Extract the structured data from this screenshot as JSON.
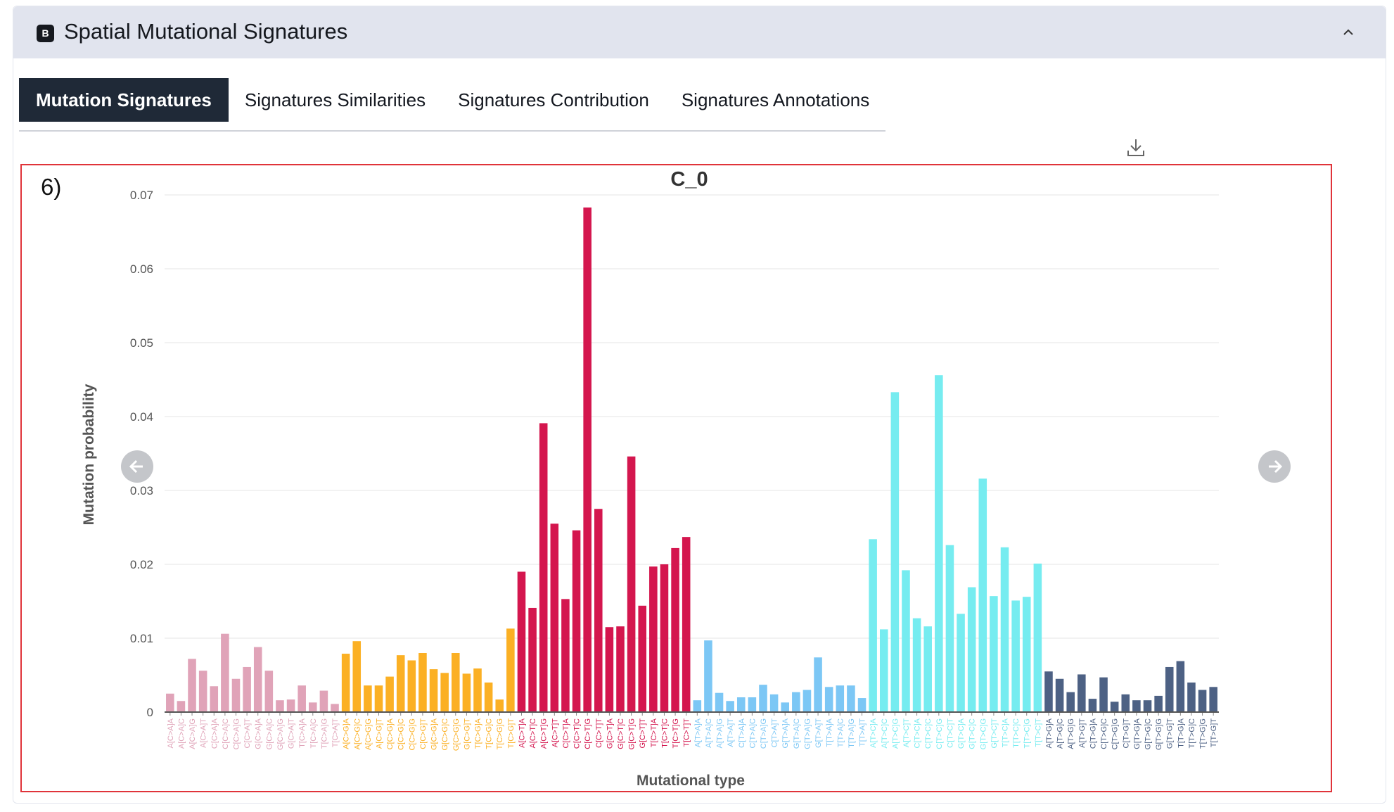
{
  "panel": {
    "badge": "B",
    "title": "Spatial Mutational Signatures"
  },
  "tabs": [
    {
      "label": "Mutation Signatures",
      "active": true
    },
    {
      "label": "Signatures Similarities",
      "active": false
    },
    {
      "label": "Signatures Contribution",
      "active": false
    },
    {
      "label": "Signatures Annotations",
      "active": false
    }
  ],
  "frame_label": "6)",
  "icons": {
    "collapse": "chevron-up-icon",
    "download": "download-icon",
    "prev": "arrow-left-icon",
    "next": "arrow-right-icon"
  },
  "chart_data": {
    "type": "bar",
    "title": "C_0",
    "xlabel": "Mutational type",
    "ylabel": "Mutation probability",
    "ylim": [
      0,
      0.07
    ],
    "yticks": [
      "0",
      "0.01",
      "0.02",
      "0.03",
      "0.04",
      "0.05",
      "0.06",
      "0.07"
    ],
    "ytick_values": [
      0,
      0.01,
      0.02,
      0.03,
      0.04,
      0.05,
      0.06,
      0.07
    ],
    "grid": true,
    "groups": [
      {
        "color": "#e0a3b8",
        "categories": [
          "A[C>A]A",
          "A[C>A]C",
          "A[C>A]G",
          "A[C>A]T",
          "C[C>A]A",
          "C[C>A]C",
          "C[C>A]G",
          "C[C>A]T",
          "G[C>A]A",
          "G[C>A]C",
          "G[C>A]G",
          "G[C>A]T",
          "T[C>A]A",
          "T[C>A]C",
          "T[C>A]G",
          "T[C>A]T"
        ],
        "values": [
          0.0025,
          0.0015,
          0.0072,
          0.0056,
          0.0035,
          0.0106,
          0.0045,
          0.0061,
          0.0088,
          0.0056,
          0.0016,
          0.0017,
          0.0036,
          0.0013,
          0.0029,
          0.0011
        ]
      },
      {
        "color": "#fbb024",
        "categories": [
          "A[C>G]A",
          "A[C>G]C",
          "A[C>G]G",
          "A[C>G]T",
          "C[C>G]A",
          "C[C>G]C",
          "C[C>G]G",
          "C[C>G]T",
          "G[C>G]A",
          "G[C>G]C",
          "G[C>G]G",
          "G[C>G]T",
          "T[C>G]A",
          "T[C>G]C",
          "T[C>G]G",
          "T[C>G]T"
        ],
        "values": [
          0.0079,
          0.0096,
          0.0036,
          0.0036,
          0.0048,
          0.0077,
          0.007,
          0.008,
          0.0058,
          0.0053,
          0.008,
          0.0052,
          0.0059,
          0.004,
          0.0017,
          0.0113
        ]
      },
      {
        "color": "#d4164e",
        "categories": [
          "A[C>T]A",
          "A[C>T]C",
          "A[C>T]G",
          "A[C>T]T",
          "C[C>T]A",
          "C[C>T]C",
          "C[C>T]G",
          "C[C>T]T",
          "G[C>T]A",
          "G[C>T]C",
          "G[C>T]G",
          "G[C>T]T",
          "T[C>T]A",
          "T[C>T]C",
          "T[C>T]G",
          "T[C>T]T"
        ],
        "values": [
          0.019,
          0.0141,
          0.0391,
          0.0255,
          0.0153,
          0.0246,
          0.0683,
          0.0275,
          0.0115,
          0.0116,
          0.0346,
          0.0144,
          0.0197,
          0.02,
          0.0222,
          0.0237
        ]
      },
      {
        "color": "#7cc7f5",
        "categories": [
          "A[T>A]A",
          "A[T>A]C",
          "A[T>A]G",
          "A[T>A]T",
          "C[T>A]A",
          "C[T>A]C",
          "C[T>A]G",
          "C[T>A]T",
          "G[T>A]A",
          "G[T>A]C",
          "G[T>A]G",
          "G[T>A]T",
          "T[T>A]A",
          "T[T>A]C",
          "T[T>A]G",
          "T[T>A]T"
        ],
        "values": [
          0.0016,
          0.0097,
          0.0026,
          0.0015,
          0.002,
          0.002,
          0.0037,
          0.0024,
          0.0013,
          0.0027,
          0.003,
          0.0074,
          0.0034,
          0.0036,
          0.0036,
          0.0019
        ]
      },
      {
        "color": "#76ecf0",
        "categories": [
          "A[T>C]A",
          "A[T>C]C",
          "A[T>C]G",
          "A[T>C]T",
          "C[T>C]A",
          "C[T>C]C",
          "C[T>C]G",
          "C[T>C]T",
          "G[T>C]A",
          "G[T>C]C",
          "G[T>C]G",
          "G[T>C]T",
          "T[T>C]A",
          "T[T>C]C",
          "T[T>C]G",
          "T[T>C]T"
        ],
        "values": [
          0.0234,
          0.0112,
          0.0433,
          0.0192,
          0.0127,
          0.0116,
          0.0456,
          0.0226,
          0.0133,
          0.0169,
          0.0316,
          0.0157,
          0.0223,
          0.0151,
          0.0156,
          0.0201
        ]
      },
      {
        "color": "#4d6184",
        "categories": [
          "A[T>G]A",
          "A[T>G]C",
          "A[T>G]G",
          "A[T>G]T",
          "C[T>G]A",
          "C[T>G]C",
          "C[T>G]G",
          "C[T>G]T",
          "G[T>G]A",
          "G[T>G]C",
          "G[T>G]G",
          "G[T>G]T",
          "T[T>G]A",
          "T[T>G]C",
          "T[T>G]G",
          "T[T>G]T"
        ],
        "values": [
          0.0055,
          0.0045,
          0.0027,
          0.0051,
          0.0018,
          0.0047,
          0.0014,
          0.0024,
          0.0016,
          0.0016,
          0.0022,
          0.0061,
          0.0069,
          0.004,
          0.003,
          0.0034
        ]
      }
    ]
  }
}
